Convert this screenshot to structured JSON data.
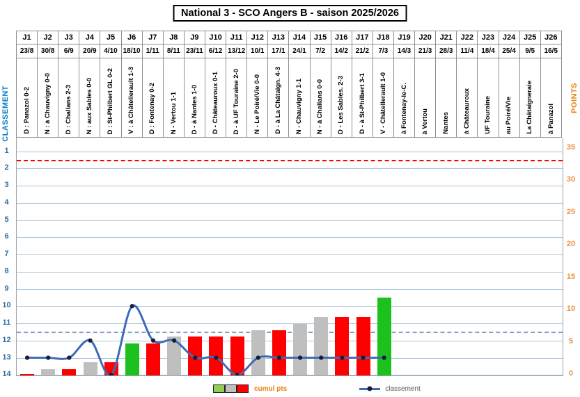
{
  "title": "National 3 - SCO Angers B - saison 2025/2026",
  "matches": [
    {
      "j": "J1",
      "date": "23/8",
      "label": "D : Panazol 0-2",
      "result": "D",
      "cumul_pts": 0,
      "rank": 13
    },
    {
      "j": "J2",
      "date": "30/8",
      "label": "N : à Chauvigny 0-0",
      "result": "N",
      "cumul_pts": 1,
      "rank": 13
    },
    {
      "j": "J3",
      "date": "6/9",
      "label": "D : Challans 2-3",
      "result": "D",
      "cumul_pts": 1,
      "rank": 13
    },
    {
      "j": "J4",
      "date": "20/9",
      "label": "N : aux Sables 0-0",
      "result": "N",
      "cumul_pts": 2,
      "rank": 12
    },
    {
      "j": "J5",
      "date": "4/10",
      "label": "D : St-Philbert GL 0-2",
      "result": "D",
      "cumul_pts": 2,
      "rank": 14
    },
    {
      "j": "J6",
      "date": "18/10",
      "label": "V : à Châtellerault 1-3",
      "result": "V",
      "cumul_pts": 5,
      "rank": 10
    },
    {
      "j": "J7",
      "date": "1/11",
      "label": "D : Fontenay 0-2",
      "result": "D",
      "cumul_pts": 5,
      "rank": 12
    },
    {
      "j": "J8",
      "date": "8/11",
      "label": "N - Vertou 1-1",
      "result": "N",
      "cumul_pts": 6,
      "rank": 12
    },
    {
      "j": "J9",
      "date": "23/11",
      "label": "D - à Nantes 1-0",
      "result": "D",
      "cumul_pts": 6,
      "rank": 13
    },
    {
      "j": "J10",
      "date": "6/12",
      "label": "D - Châteauroux 0-1",
      "result": "D",
      "cumul_pts": 6,
      "rank": 13
    },
    {
      "j": "J11",
      "date": "13/12",
      "label": "D - à UF Touraine 2-0",
      "result": "D",
      "cumul_pts": 6,
      "rank": 14
    },
    {
      "j": "J12",
      "date": "10/1",
      "label": "N - Le Poiré/Vie 0-0",
      "result": "N",
      "cumul_pts": 7,
      "rank": 13
    },
    {
      "j": "J13",
      "date": "17/1",
      "label": "D - à La Châtaign. 4-3",
      "result": "D",
      "cumul_pts": 7,
      "rank": 13
    },
    {
      "j": "J14",
      "date": "24/1",
      "label": "N - Chauvigny 1-1",
      "result": "N",
      "cumul_pts": 8,
      "rank": 13
    },
    {
      "j": "J15",
      "date": "7/2",
      "label": "N - à Challans 0-0",
      "result": "N",
      "cumul_pts": 9,
      "rank": 13
    },
    {
      "j": "J16",
      "date": "14/2",
      "label": "D - Les Sables. 2-3",
      "result": "D",
      "cumul_pts": 9,
      "rank": 13
    },
    {
      "j": "J17",
      "date": "21/2",
      "label": "D - à St-Philbert 3-1",
      "result": "D",
      "cumul_pts": 9,
      "rank": 13
    },
    {
      "j": "J18",
      "date": "7/3",
      "label": "V - Châtellerault 1-0",
      "result": "V",
      "cumul_pts": 12,
      "rank": 13
    },
    {
      "j": "J19",
      "date": "14/3",
      "label": "à Fontenay-le-C.",
      "result": null,
      "cumul_pts": null,
      "rank": null
    },
    {
      "j": "J20",
      "date": "21/3",
      "label": "à Vertou",
      "result": null,
      "cumul_pts": null,
      "rank": null
    },
    {
      "j": "J21",
      "date": "28/3",
      "label": "Nantes",
      "result": null,
      "cumul_pts": null,
      "rank": null
    },
    {
      "j": "J22",
      "date": "11/4",
      "label": "à Châteauroux",
      "result": null,
      "cumul_pts": null,
      "rank": null
    },
    {
      "j": "J23",
      "date": "18/4",
      "label": "UF Touraine",
      "result": null,
      "cumul_pts": null,
      "rank": null
    },
    {
      "j": "J24",
      "date": "25/4",
      "label": "au Poiré/Vie",
      "result": null,
      "cumul_pts": null,
      "rank": null
    },
    {
      "j": "J25",
      "date": "9/5",
      "label": "La Châtaigneraie",
      "result": null,
      "cumul_pts": null,
      "rank": null
    },
    {
      "j": "J26",
      "date": "16/5",
      "label": "à Panazol",
      "result": null,
      "cumul_pts": null,
      "rank": null
    }
  ],
  "left_axis": {
    "title": "CLASSEMENT",
    "ticks": [
      1,
      2,
      3,
      4,
      5,
      6,
      7,
      8,
      9,
      10,
      11,
      12,
      13,
      14
    ],
    "title_color": "#0080c6",
    "tick_color": "#2e6da4"
  },
  "right_axis": {
    "title": "POINTS",
    "ticks": [
      35,
      30,
      25,
      20,
      15,
      10,
      5,
      0
    ],
    "title_color": "#e8820c",
    "tick_color": "#e9913c"
  },
  "reference_lines": {
    "red_dashed_rank": 1.5,
    "blue_dashed_rank": 11.5
  },
  "legend": {
    "bars_label": "cumul pts",
    "line_label": "classement"
  },
  "colors": {
    "win": "#1dc11d",
    "draw": "#bfbfbf",
    "loss": "#fe0000",
    "legend_win": "#92d050",
    "line": "#3f6bb6",
    "marker": "#141f38",
    "grid": "#aac4d8",
    "red_dash": "#ff0000",
    "blue_dash": "#7f9ccd",
    "bars_label": "#e8820c"
  },
  "chart_data": {
    "type": "bar+line",
    "title": "National 3 - SCO Angers B - saison 2025/2026",
    "categories": [
      "J1",
      "J2",
      "J3",
      "J4",
      "J5",
      "J6",
      "J7",
      "J8",
      "J9",
      "J10",
      "J11",
      "J12",
      "J13",
      "J14",
      "J15",
      "J16",
      "J17",
      "J18",
      "J19",
      "J20",
      "J21",
      "J22",
      "J23",
      "J24",
      "J25",
      "J26"
    ],
    "category_dates": [
      "23/8",
      "30/8",
      "6/9",
      "20/9",
      "4/10",
      "18/10",
      "1/11",
      "8/11",
      "23/11",
      "6/12",
      "13/12",
      "10/1",
      "17/1",
      "24/1",
      "7/2",
      "14/2",
      "21/2",
      "7/3",
      "14/3",
      "21/3",
      "28/3",
      "11/4",
      "18/4",
      "25/4",
      "9/5",
      "16/5"
    ],
    "series": [
      {
        "name": "cumul pts",
        "type": "bar",
        "axis": "right",
        "values": [
          0,
          1,
          1,
          2,
          2,
          5,
          5,
          6,
          6,
          6,
          6,
          7,
          7,
          8,
          9,
          9,
          9,
          12,
          null,
          null,
          null,
          null,
          null,
          null,
          null,
          null
        ],
        "bar_color_rule": {
          "V": "#1dc11d",
          "N": "#bfbfbf",
          "D": "#fe0000"
        }
      },
      {
        "name": "classement",
        "type": "line",
        "axis": "left",
        "values": [
          13,
          13,
          13,
          12,
          14,
          10,
          12,
          12,
          13,
          13,
          14,
          13,
          13,
          13,
          13,
          13,
          13,
          13,
          null,
          null,
          null,
          null,
          null,
          null,
          null,
          null
        ]
      }
    ],
    "results": [
      "D",
      "N",
      "D",
      "N",
      "D",
      "V",
      "D",
      "N",
      "D",
      "D",
      "D",
      "N",
      "D",
      "N",
      "N",
      "D",
      "D",
      "V",
      null,
      null,
      null,
      null,
      null,
      null,
      null,
      null
    ],
    "left_axis": {
      "label": "CLASSEMENT",
      "range_top_to_bottom": [
        1,
        14
      ]
    },
    "right_axis": {
      "label": "POINTS",
      "range": [
        0,
        35
      ],
      "tick_step": 5
    },
    "reference_lines": [
      {
        "color": "red",
        "style": "dashed",
        "rank": 1.5
      },
      {
        "color": "blue",
        "style": "dashed",
        "rank": 11.5
      }
    ],
    "grid": true,
    "legend_position": "bottom"
  }
}
